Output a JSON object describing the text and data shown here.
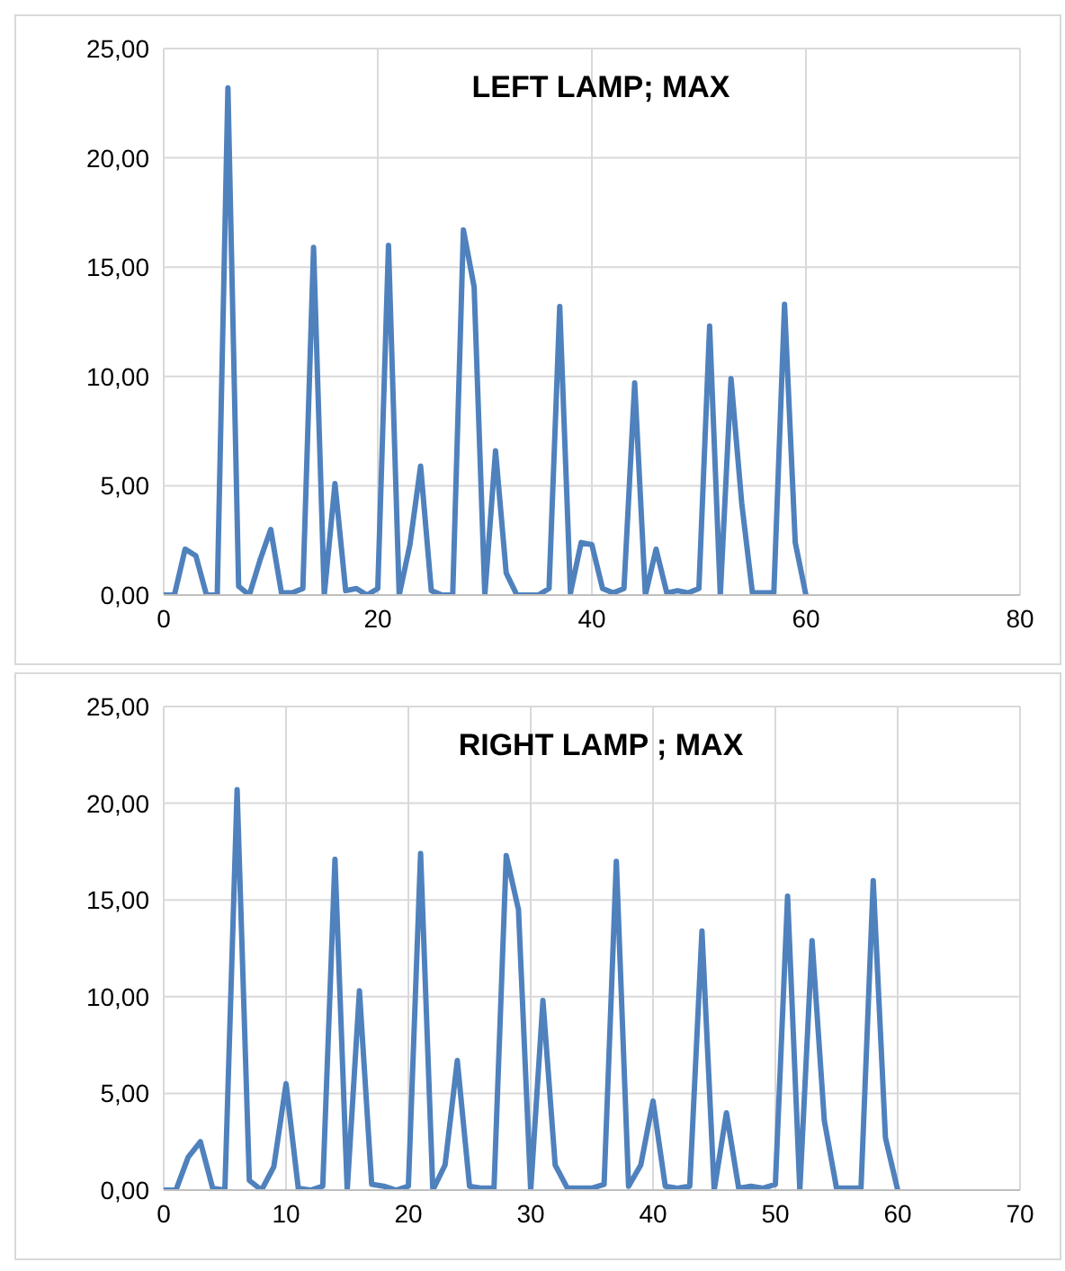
{
  "chart_data": [
    {
      "type": "line",
      "title": "LEFT LAMP; MAX",
      "x": [
        0,
        1,
        2,
        3,
        4,
        5,
        6,
        7,
        8,
        9,
        10,
        11,
        12,
        13,
        14,
        15,
        16,
        17,
        18,
        19,
        20,
        21,
        22,
        23,
        24,
        25,
        26,
        27,
        28,
        29,
        30,
        31,
        32,
        33,
        34,
        35,
        36,
        37,
        38,
        39,
        40,
        41,
        42,
        43,
        44,
        45,
        46,
        47,
        48,
        49,
        50,
        51,
        52,
        53,
        54,
        55,
        56,
        57,
        58,
        59,
        60
      ],
      "series": [
        {
          "color": "#4f81bd",
          "values": [
            0,
            0,
            2.1,
            1.8,
            0,
            0,
            23.2,
            0.4,
            0,
            1.6,
            3.0,
            0.1,
            0.1,
            0.3,
            15.9,
            0,
            5.1,
            0.2,
            0.3,
            0,
            0.3,
            16.0,
            0,
            2.3,
            5.9,
            0.2,
            0,
            0,
            16.7,
            14.1,
            0,
            6.6,
            1.0,
            0,
            0,
            0,
            0.3,
            13.2,
            0.1,
            2.4,
            2.3,
            0.3,
            0.1,
            0.3,
            9.7,
            0,
            2.1,
            0.1,
            0.2,
            0.1,
            0.3,
            12.3,
            0,
            9.9,
            4.2,
            0.1,
            0.1,
            0.1,
            13.3,
            2.4,
            0
          ]
        }
      ],
      "xlim": [
        0,
        80
      ],
      "xticks": [
        0,
        20,
        40,
        60,
        80
      ],
      "ylim": [
        0,
        25
      ],
      "yticks": [
        {
          "value": 0,
          "label": "0,00"
        },
        {
          "value": 5,
          "label": "5,00"
        },
        {
          "value": 10,
          "label": "10,00"
        },
        {
          "value": 15,
          "label": "15,00"
        },
        {
          "value": 20,
          "label": "20,00"
        },
        {
          "value": 25,
          "label": "25,00"
        }
      ],
      "grid": true,
      "marker": "none",
      "line_style": "solid",
      "legend": false
    },
    {
      "type": "line",
      "title": "RIGHT LAMP ; MAX",
      "x": [
        0,
        1,
        2,
        3,
        4,
        5,
        6,
        7,
        8,
        9,
        10,
        11,
        12,
        13,
        14,
        15,
        16,
        17,
        18,
        19,
        20,
        21,
        22,
        23,
        24,
        25,
        26,
        27,
        28,
        29,
        30,
        31,
        32,
        33,
        34,
        35,
        36,
        37,
        38,
        39,
        40,
        41,
        42,
        43,
        44,
        45,
        46,
        47,
        48,
        49,
        50,
        51,
        52,
        53,
        54,
        55,
        56,
        57,
        58,
        59,
        60
      ],
      "series": [
        {
          "color": "#4f81bd",
          "values": [
            0,
            0,
            1.7,
            2.5,
            0.1,
            0,
            20.7,
            0.5,
            0,
            1.2,
            5.5,
            0.1,
            0,
            0.2,
            17.1,
            0,
            10.3,
            0.3,
            0.2,
            0,
            0.2,
            17.4,
            0,
            1.3,
            6.7,
            0.2,
            0.1,
            0.1,
            17.3,
            14.5,
            0,
            9.8,
            1.3,
            0.1,
            0.1,
            0.1,
            0.3,
            17.0,
            0.2,
            1.3,
            4.6,
            0.2,
            0.1,
            0.2,
            13.4,
            0,
            4.0,
            0.1,
            0.2,
            0.1,
            0.3,
            15.2,
            0,
            12.9,
            3.6,
            0.1,
            0.1,
            0.1,
            16.0,
            2.7,
            0
          ]
        }
      ],
      "xlim": [
        0,
        70
      ],
      "xticks": [
        0,
        10,
        20,
        30,
        40,
        50,
        60,
        70
      ],
      "ylim": [
        0,
        25
      ],
      "yticks": [
        {
          "value": 0,
          "label": "0,00"
        },
        {
          "value": 5,
          "label": "5,00"
        },
        {
          "value": 10,
          "label": "10,00"
        },
        {
          "value": 15,
          "label": "15,00"
        },
        {
          "value": 20,
          "label": "20,00"
        },
        {
          "value": 25,
          "label": "25,00"
        }
      ],
      "grid": true,
      "marker": "none",
      "line_style": "solid",
      "legend": false
    }
  ]
}
